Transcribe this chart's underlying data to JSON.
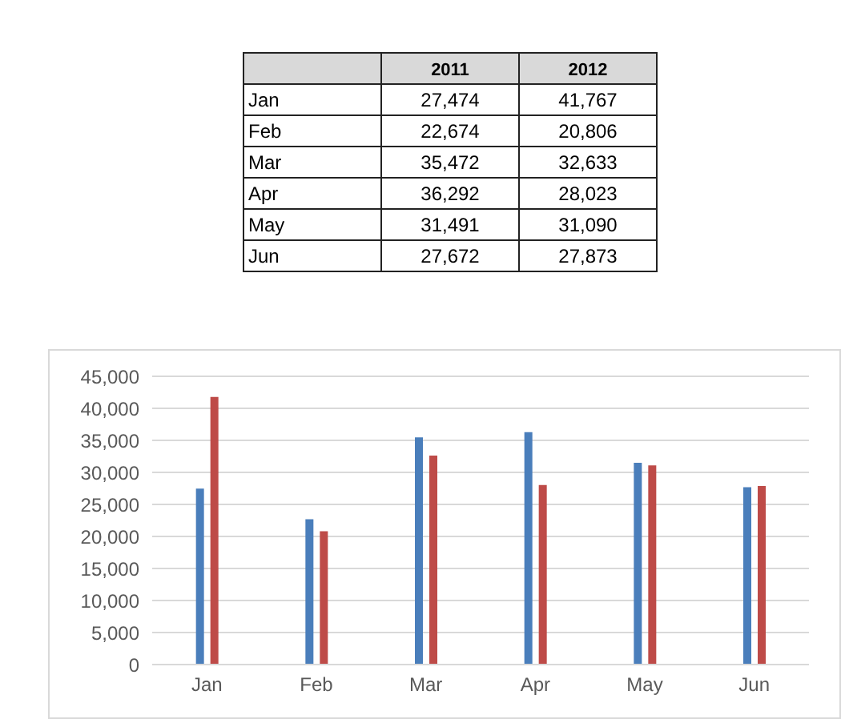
{
  "chart_data": [
    {
      "type": "other",
      "categories": [
        "2011",
        "2012"
      ],
      "y_categories": [
        "Jan",
        "Feb",
        "Mar",
        "Apr",
        "May",
        "Jun"
      ],
      "cell_labels": [
        [
          "27,474",
          "41,767"
        ],
        [
          "22,674",
          "20,806"
        ],
        [
          "35,472",
          "32,633"
        ],
        [
          "36,292",
          "28,023"
        ],
        [
          "31,491",
          "31,090"
        ],
        [
          "27,672",
          "27,873"
        ]
      ]
    },
    {
      "type": "bar",
      "categories": [
        "Jan",
        "Feb",
        "Mar",
        "Apr",
        "May",
        "Jun"
      ],
      "series": [
        {
          "color": "#4a7ebb",
          "values": [
            27474,
            22674,
            35472,
            36292,
            31491,
            27672
          ]
        },
        {
          "color": "#be4b48",
          "values": [
            41767,
            20806,
            32633,
            28023,
            31090,
            27873
          ]
        }
      ],
      "ylim": [
        0,
        45000
      ],
      "yticks": [
        {
          "value": 0,
          "label": "0"
        },
        {
          "value": 5000,
          "label": "5,000"
        },
        {
          "value": 10000,
          "label": "10,000"
        },
        {
          "value": 15000,
          "label": "15,000"
        },
        {
          "value": 20000,
          "label": "20,000"
        },
        {
          "value": 25000,
          "label": "25,000"
        },
        {
          "value": 30000,
          "label": "30,000"
        },
        {
          "value": 35000,
          "label": "35,000"
        },
        {
          "value": 40000,
          "label": "40,000"
        },
        {
          "value": 45000,
          "label": "45,000"
        }
      ],
      "grid": "y"
    }
  ]
}
